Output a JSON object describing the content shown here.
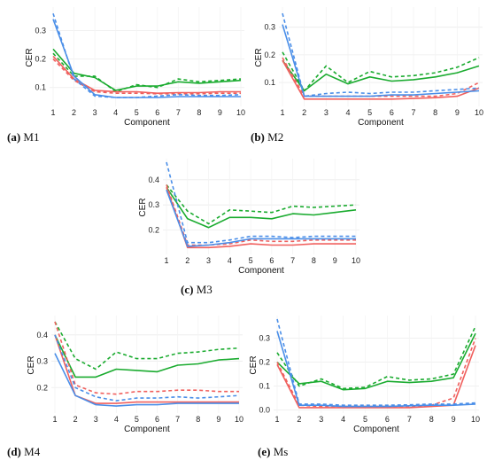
{
  "colors": {
    "green": "#1aab2f",
    "red": "#f0605e",
    "blue": "#4a8ee8"
  },
  "chart_data": [
    {
      "id": "m1",
      "type": "line",
      "caption_letter": "(a)",
      "caption_text": "M1",
      "xlabel": "Component",
      "ylabel": "CER",
      "x": [
        1,
        2,
        3,
        4,
        5,
        6,
        7,
        8,
        9,
        10
      ],
      "ylim": [
        0.04,
        0.37
      ],
      "yticks": [
        0.1,
        0.2,
        0.3
      ],
      "ytick_labels": [
        "0.1",
        "0.2",
        "0.3"
      ],
      "series": [
        {
          "color": "green",
          "dash": false,
          "values": [
            0.235,
            0.15,
            0.135,
            0.09,
            0.105,
            0.105,
            0.12,
            0.115,
            0.12,
            0.125
          ]
        },
        {
          "color": "green",
          "dash": true,
          "values": [
            0.22,
            0.14,
            0.14,
            0.085,
            0.11,
            0.1,
            0.13,
            0.12,
            0.125,
            0.13
          ]
        },
        {
          "color": "red",
          "dash": false,
          "values": [
            0.21,
            0.13,
            0.09,
            0.085,
            0.085,
            0.08,
            0.082,
            0.082,
            0.085,
            0.085
          ]
        },
        {
          "color": "red",
          "dash": true,
          "values": [
            0.2,
            0.125,
            0.085,
            0.08,
            0.08,
            0.078,
            0.078,
            0.078,
            0.08,
            0.08
          ]
        },
        {
          "color": "blue",
          "dash": false,
          "values": [
            0.34,
            0.14,
            0.075,
            0.065,
            0.065,
            0.065,
            0.068,
            0.068,
            0.068,
            0.068
          ]
        },
        {
          "color": "blue",
          "dash": true,
          "values": [
            0.36,
            0.13,
            0.07,
            0.065,
            0.065,
            0.07,
            0.075,
            0.072,
            0.072,
            0.075
          ]
        }
      ]
    },
    {
      "id": "m2",
      "type": "line",
      "caption_letter": "(b)",
      "caption_text": "M2",
      "xlabel": "Component",
      "ylabel": "CER",
      "x": [
        1,
        2,
        3,
        4,
        5,
        6,
        7,
        8,
        9,
        10
      ],
      "ylim": [
        0.02,
        0.36
      ],
      "yticks": [
        0.1,
        0.2,
        0.3
      ],
      "ytick_labels": [
        "0.1",
        "0.2",
        "0.3"
      ],
      "series": [
        {
          "color": "green",
          "dash": false,
          "values": [
            0.18,
            0.07,
            0.13,
            0.095,
            0.12,
            0.105,
            0.11,
            0.12,
            0.135,
            0.16
          ]
        },
        {
          "color": "green",
          "dash": true,
          "values": [
            0.21,
            0.07,
            0.16,
            0.1,
            0.14,
            0.12,
            0.125,
            0.135,
            0.155,
            0.19
          ]
        },
        {
          "color": "red",
          "dash": false,
          "values": [
            0.18,
            0.04,
            0.04,
            0.04,
            0.04,
            0.04,
            0.042,
            0.045,
            0.05,
            0.08
          ]
        },
        {
          "color": "red",
          "dash": true,
          "values": [
            0.19,
            0.05,
            0.05,
            0.05,
            0.05,
            0.05,
            0.05,
            0.05,
            0.06,
            0.1
          ]
        },
        {
          "color": "blue",
          "dash": false,
          "values": [
            0.31,
            0.05,
            0.05,
            0.05,
            0.05,
            0.055,
            0.055,
            0.06,
            0.065,
            0.07
          ]
        },
        {
          "color": "blue",
          "dash": true,
          "values": [
            0.35,
            0.05,
            0.06,
            0.065,
            0.06,
            0.065,
            0.065,
            0.07,
            0.075,
            0.08
          ]
        }
      ]
    },
    {
      "id": "m3",
      "type": "line",
      "caption_letter": "(c)",
      "caption_text": "M3",
      "xlabel": "Component",
      "ylabel": "CER",
      "x": [
        1,
        2,
        3,
        4,
        5,
        6,
        7,
        8,
        9,
        10
      ],
      "ylim": [
        0.11,
        0.47
      ],
      "yticks": [
        0.2,
        0.3,
        0.4
      ],
      "ytick_labels": [
        "0.2",
        "0.3",
        "0.4"
      ],
      "series": [
        {
          "color": "green",
          "dash": false,
          "values": [
            0.37,
            0.245,
            0.21,
            0.25,
            0.25,
            0.245,
            0.265,
            0.26,
            0.27,
            0.28
          ]
        },
        {
          "color": "green",
          "dash": true,
          "values": [
            0.38,
            0.275,
            0.225,
            0.28,
            0.275,
            0.27,
            0.295,
            0.29,
            0.295,
            0.3
          ]
        },
        {
          "color": "red",
          "dash": false,
          "values": [
            0.37,
            0.13,
            0.13,
            0.135,
            0.145,
            0.14,
            0.14,
            0.145,
            0.145,
            0.145
          ]
        },
        {
          "color": "red",
          "dash": true,
          "values": [
            0.38,
            0.14,
            0.14,
            0.145,
            0.16,
            0.155,
            0.155,
            0.16,
            0.16,
            0.16
          ]
        },
        {
          "color": "blue",
          "dash": false,
          "values": [
            0.36,
            0.135,
            0.14,
            0.15,
            0.165,
            0.165,
            0.165,
            0.165,
            0.165,
            0.165
          ]
        },
        {
          "color": "blue",
          "dash": true,
          "values": [
            0.47,
            0.15,
            0.15,
            0.16,
            0.175,
            0.175,
            0.17,
            0.175,
            0.175,
            0.175
          ]
        }
      ]
    },
    {
      "id": "m4",
      "type": "line",
      "caption_letter": "(d)",
      "caption_text": "M4",
      "xlabel": "Component",
      "ylabel": "CER",
      "x": [
        1,
        2,
        3,
        4,
        5,
        6,
        7,
        8,
        9,
        10
      ],
      "ylim": [
        0.11,
        0.46
      ],
      "yticks": [
        0.2,
        0.3,
        0.4
      ],
      "ytick_labels": [
        "0.2",
        "0.3",
        "0.4"
      ],
      "series": [
        {
          "color": "green",
          "dash": false,
          "values": [
            0.4,
            0.24,
            0.24,
            0.27,
            0.265,
            0.26,
            0.285,
            0.29,
            0.305,
            0.31
          ]
        },
        {
          "color": "green",
          "dash": true,
          "values": [
            0.45,
            0.31,
            0.27,
            0.335,
            0.31,
            0.31,
            0.33,
            0.335,
            0.345,
            0.35
          ]
        },
        {
          "color": "red",
          "dash": false,
          "values": [
            0.4,
            0.17,
            0.14,
            0.14,
            0.145,
            0.145,
            0.145,
            0.145,
            0.145,
            0.145
          ]
        },
        {
          "color": "red",
          "dash": true,
          "values": [
            0.45,
            0.21,
            0.18,
            0.175,
            0.185,
            0.185,
            0.19,
            0.19,
            0.185,
            0.185
          ]
        },
        {
          "color": "blue",
          "dash": false,
          "values": [
            0.33,
            0.17,
            0.135,
            0.13,
            0.135,
            0.135,
            0.14,
            0.14,
            0.14,
            0.14
          ]
        },
        {
          "color": "blue",
          "dash": true,
          "values": [
            0.4,
            0.2,
            0.165,
            0.15,
            0.16,
            0.16,
            0.165,
            0.16,
            0.165,
            0.17
          ]
        }
      ]
    },
    {
      "id": "ms",
      "type": "line",
      "caption_letter": "(e)",
      "caption_text": "Ms",
      "xlabel": "Component",
      "ylabel": "CER",
      "x": [
        1,
        2,
        3,
        4,
        5,
        6,
        7,
        8,
        9,
        10
      ],
      "ylim": [
        -0.005,
        0.38
      ],
      "yticks": [
        0.0,
        0.1,
        0.2,
        0.3
      ],
      "ytick_labels": [
        "0.0",
        "0.1",
        "0.2",
        "0.3"
      ],
      "series": [
        {
          "color": "green",
          "dash": false,
          "values": [
            0.2,
            0.11,
            0.12,
            0.085,
            0.09,
            0.12,
            0.115,
            0.12,
            0.135,
            0.32
          ]
        },
        {
          "color": "green",
          "dash": true,
          "values": [
            0.24,
            0.1,
            0.13,
            0.09,
            0.095,
            0.14,
            0.125,
            0.13,
            0.15,
            0.35
          ]
        },
        {
          "color": "red",
          "dash": false,
          "values": [
            0.19,
            0.01,
            0.01,
            0.01,
            0.01,
            0.01,
            0.01,
            0.015,
            0.02,
            0.27
          ]
        },
        {
          "color": "red",
          "dash": true,
          "values": [
            0.2,
            0.02,
            0.015,
            0.015,
            0.015,
            0.015,
            0.015,
            0.02,
            0.05,
            0.3
          ]
        },
        {
          "color": "blue",
          "dash": false,
          "values": [
            0.33,
            0.02,
            0.02,
            0.015,
            0.015,
            0.015,
            0.018,
            0.02,
            0.02,
            0.025
          ]
        },
        {
          "color": "blue",
          "dash": true,
          "values": [
            0.38,
            0.025,
            0.025,
            0.02,
            0.02,
            0.02,
            0.022,
            0.025,
            0.025,
            0.03
          ]
        }
      ]
    }
  ]
}
